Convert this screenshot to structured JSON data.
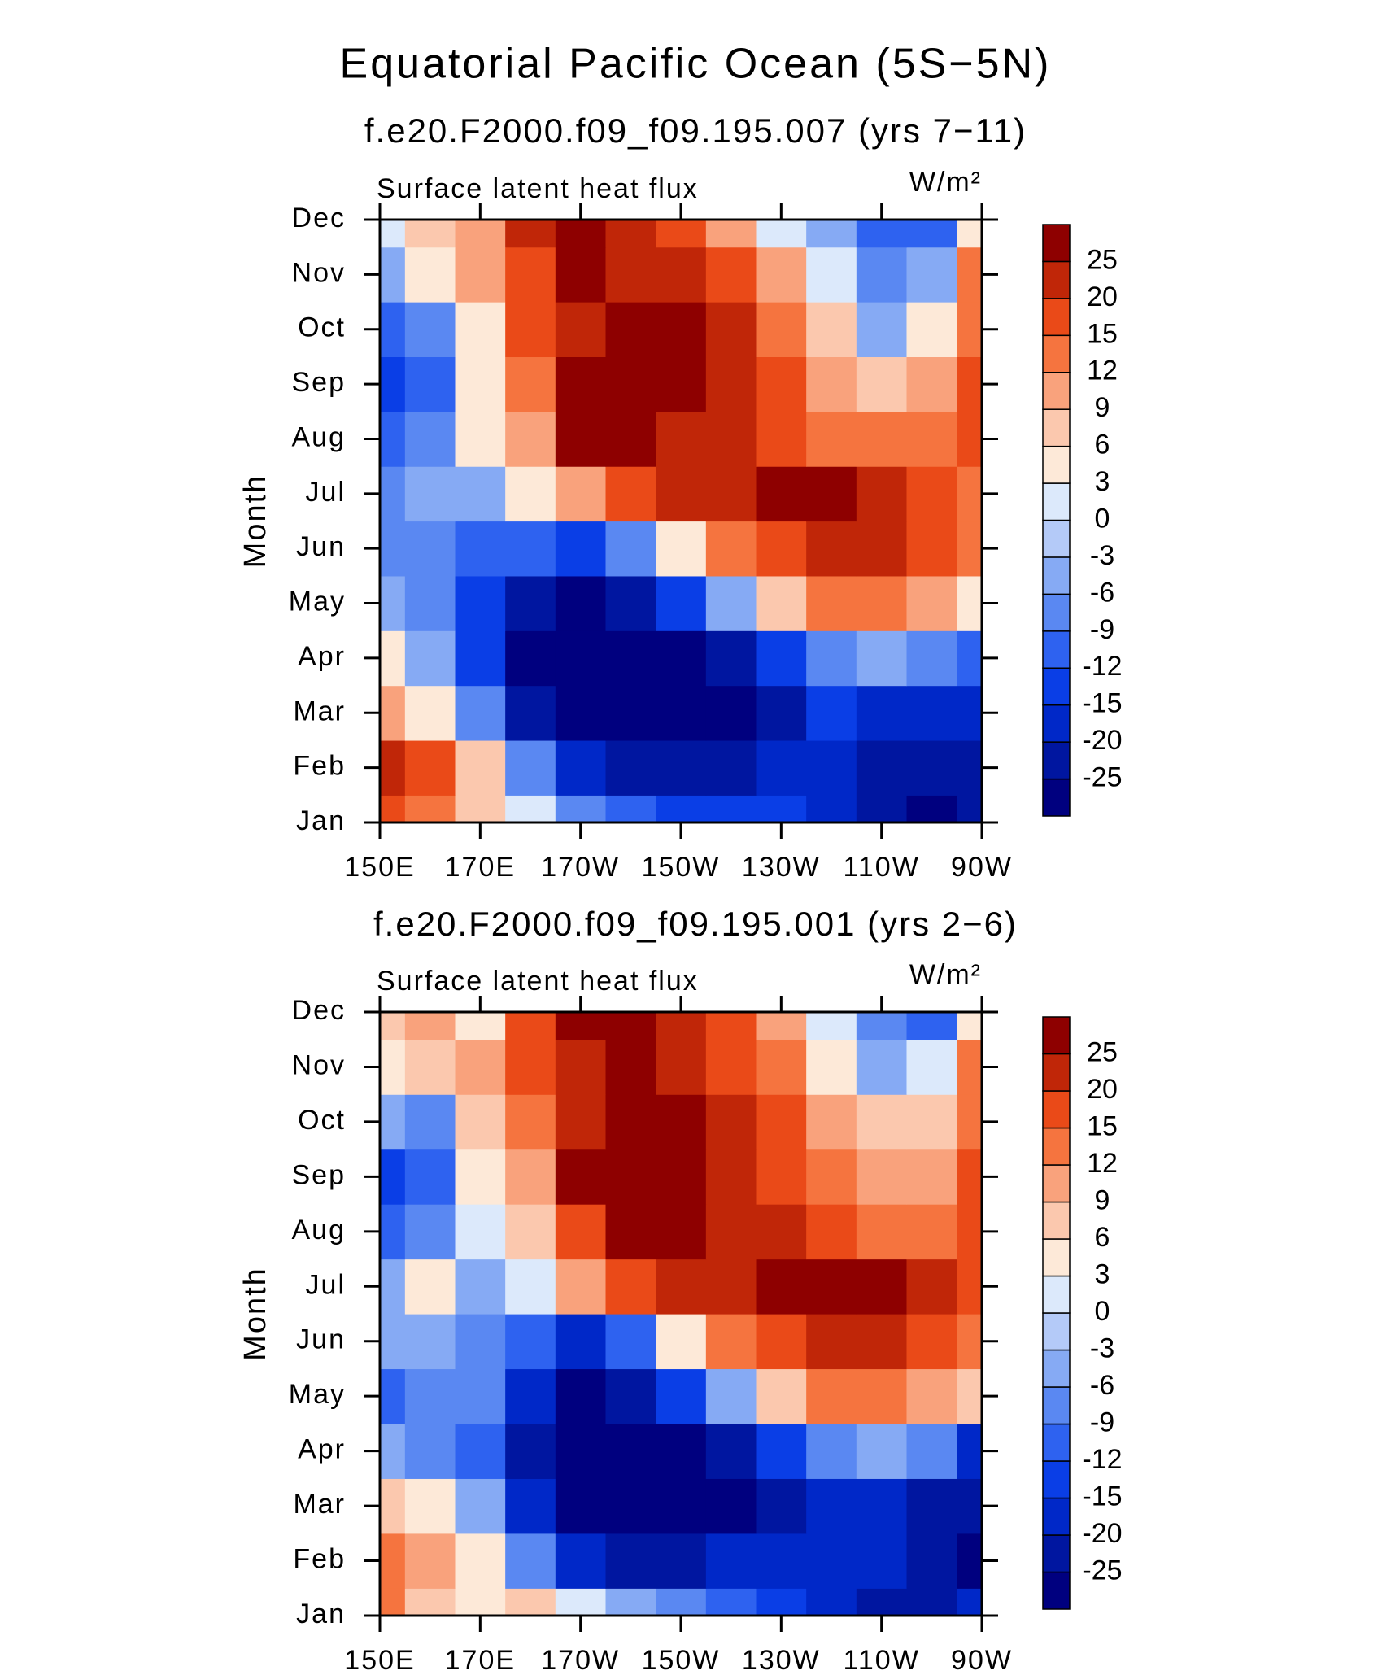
{
  "title": "Equatorial Pacific Ocean (5S−5N)",
  "chart_data": [
    {
      "type": "contour",
      "title": "f.e20.F2000.f09_f09.195.007 (yrs 7−11)",
      "left_label": "Surface latent heat flux",
      "units_label": "W/m²",
      "ylabel": "Month",
      "x": [
        150,
        160,
        170,
        180,
        190,
        200,
        210,
        220,
        230,
        240,
        250,
        260,
        270
      ],
      "categories": [
        "Jan",
        "Feb",
        "Mar",
        "Apr",
        "May",
        "Jun",
        "Jul",
        "Aug",
        "Sep",
        "Oct",
        "Nov",
        "Dec"
      ],
      "xlim": [
        150,
        270
      ],
      "xticks": [
        {
          "value": 150,
          "label": "150E"
        },
        {
          "value": 170,
          "label": "170E"
        },
        {
          "value": 190,
          "label": "170W"
        },
        {
          "value": 210,
          "label": "150W"
        },
        {
          "value": 230,
          "label": "130W"
        },
        {
          "value": 250,
          "label": "110W"
        },
        {
          "value": 270,
          "label": "90W"
        }
      ],
      "levels": [
        -25,
        -20,
        -15,
        -12,
        -9,
        -6,
        -3,
        0,
        3,
        6,
        9,
        12,
        15,
        20,
        25
      ],
      "colors": [
        "#00007f",
        "#0016a0",
        "#0028c8",
        "#0a3ee6",
        "#2e62f0",
        "#5a88f2",
        "#86aaf4",
        "#b4caf8",
        "#dce9fb",
        "#fde9d8",
        "#fbc8ae",
        "#f9a27c",
        "#f5743f",
        "#ea4a18",
        "#c02608",
        "#8e0000"
      ],
      "z": [
        [
          15,
          12,
          6,
          0,
          -6,
          -9,
          -12,
          -12,
          -12,
          -15,
          -20,
          -25,
          -20
        ],
        [
          20,
          15,
          6,
          -6,
          -15,
          -20,
          -20,
          -20,
          -15,
          -15,
          -20,
          -20,
          -20
        ],
        [
          9,
          3,
          -6,
          -20,
          -25,
          -25,
          -25,
          -25,
          -20,
          -12,
          -15,
          -15,
          -15
        ],
        [
          3,
          -3,
          -12,
          -25,
          -25,
          -25,
          -25,
          -20,
          -12,
          -6,
          -3,
          -6,
          -9
        ],
        [
          -3,
          -6,
          -12,
          -20,
          -25,
          -20,
          -12,
          -3,
          6,
          12,
          12,
          9,
          3
        ],
        [
          -6,
          -6,
          -9,
          -9,
          -12,
          -6,
          3,
          12,
          15,
          20,
          20,
          15,
          12
        ],
        [
          -6,
          -3,
          -3,
          3,
          9,
          15,
          20,
          20,
          25,
          25,
          20,
          15,
          12
        ],
        [
          -9,
          -6,
          3,
          9,
          25,
          25,
          20,
          20,
          15,
          12,
          12,
          12,
          15
        ],
        [
          -12,
          -9,
          3,
          12,
          25,
          25,
          25,
          20,
          15,
          9,
          6,
          9,
          15
        ],
        [
          -9,
          -6,
          3,
          15,
          20,
          25,
          25,
          20,
          12,
          6,
          -3,
          3,
          12
        ],
        [
          -3,
          3,
          9,
          15,
          25,
          20,
          20,
          15,
          9,
          0,
          -6,
          -3,
          12
        ],
        [
          0,
          6,
          9,
          20,
          25,
          20,
          15,
          9,
          0,
          -3,
          -9,
          -9,
          3
        ]
      ]
    },
    {
      "type": "contour",
      "title": "f.e20.F2000.f09_f09.195.001 (yrs 2−6)",
      "left_label": "Surface latent heat flux",
      "units_label": "W/m²",
      "ylabel": "Month",
      "x": [
        150,
        160,
        170,
        180,
        190,
        200,
        210,
        220,
        230,
        240,
        250,
        260,
        270
      ],
      "categories": [
        "Jan",
        "Feb",
        "Mar",
        "Apr",
        "May",
        "Jun",
        "Jul",
        "Aug",
        "Sep",
        "Oct",
        "Nov",
        "Dec"
      ],
      "xlim": [
        150,
        270
      ],
      "xticks": [
        {
          "value": 150,
          "label": "150E"
        },
        {
          "value": 170,
          "label": "170E"
        },
        {
          "value": 190,
          "label": "170W"
        },
        {
          "value": 210,
          "label": "150W"
        },
        {
          "value": 230,
          "label": "130W"
        },
        {
          "value": 250,
          "label": "110W"
        },
        {
          "value": 270,
          "label": "90W"
        }
      ],
      "levels": [
        -25,
        -20,
        -15,
        -12,
        -9,
        -6,
        -3,
        0,
        3,
        6,
        9,
        12,
        15,
        20,
        25
      ],
      "colors": [
        "#00007f",
        "#0016a0",
        "#0028c8",
        "#0a3ee6",
        "#2e62f0",
        "#5a88f2",
        "#86aaf4",
        "#b4caf8",
        "#dce9fb",
        "#fde9d8",
        "#fbc8ae",
        "#f9a27c",
        "#f5743f",
        "#ea4a18",
        "#c02608",
        "#8e0000"
      ],
      "z": [
        [
          12,
          6,
          3,
          6,
          0,
          -3,
          -6,
          -9,
          -12,
          -15,
          -20,
          -20,
          -15
        ],
        [
          12,
          9,
          3,
          -6,
          -15,
          -20,
          -20,
          -15,
          -15,
          -15,
          -15,
          -20,
          -25
        ],
        [
          6,
          3,
          -3,
          -15,
          -25,
          -25,
          -25,
          -25,
          -20,
          -15,
          -15,
          -20,
          -20
        ],
        [
          -3,
          -6,
          -9,
          -20,
          -25,
          -25,
          -25,
          -20,
          -12,
          -6,
          -3,
          -6,
          -15
        ],
        [
          -9,
          -6,
          -6,
          -15,
          -25,
          -20,
          -12,
          -3,
          6,
          12,
          12,
          9,
          6
        ],
        [
          -3,
          -3,
          -6,
          -9,
          -15,
          -9,
          3,
          12,
          15,
          20,
          20,
          15,
          12
        ],
        [
          -3,
          3,
          -3,
          0,
          9,
          15,
          20,
          20,
          25,
          25,
          25,
          20,
          15
        ],
        [
          -9,
          -6,
          0,
          6,
          15,
          25,
          25,
          20,
          20,
          15,
          12,
          12,
          15
        ],
        [
          -12,
          -9,
          3,
          9,
          25,
          25,
          25,
          20,
          15,
          12,
          9,
          9,
          15
        ],
        [
          -3,
          -6,
          6,
          12,
          20,
          25,
          25,
          20,
          15,
          9,
          6,
          6,
          12
        ],
        [
          3,
          6,
          9,
          15,
          20,
          25,
          20,
          15,
          12,
          3,
          -3,
          0,
          12
        ],
        [
          6,
          9,
          3,
          15,
          25,
          25,
          20,
          15,
          9,
          0,
          -6,
          -9,
          3
        ]
      ]
    }
  ]
}
